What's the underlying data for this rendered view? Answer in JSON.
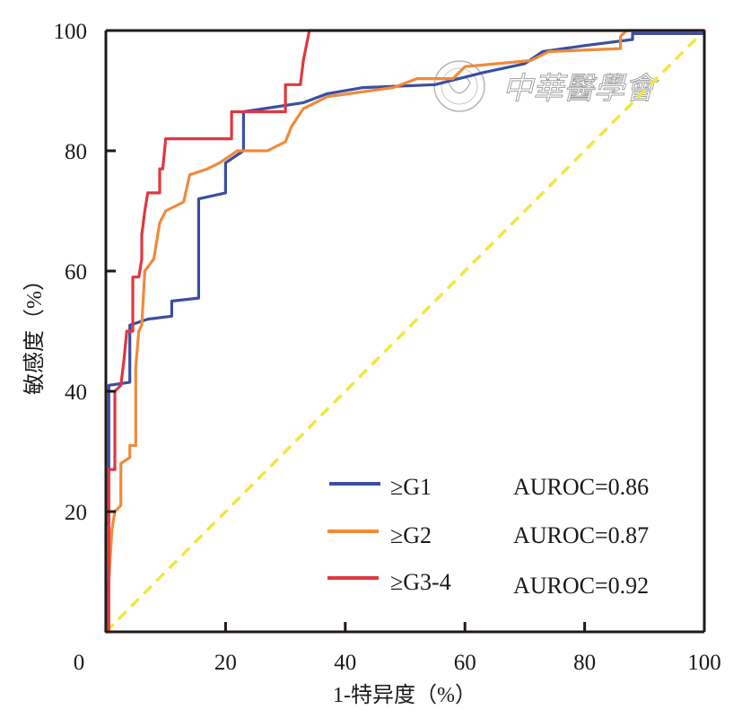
{
  "chart_data": {
    "type": "line",
    "title": "",
    "xlabel": "1-特异度（%）",
    "ylabel": "敏感度（%）",
    "xlim": [
      0,
      100
    ],
    "ylim": [
      0,
      100
    ],
    "x_ticks": [
      0,
      20,
      40,
      60,
      80,
      100
    ],
    "y_ticks": [
      20,
      40,
      60,
      80,
      100
    ],
    "x_tick_labels": [
      "0",
      "20",
      "40",
      "60",
      "80",
      "100"
    ],
    "y_tick_labels": [
      "20",
      "40",
      "60",
      "80",
      "100"
    ],
    "grid": false,
    "legend_position": "bottom-right",
    "reference_line": {
      "name": "chance",
      "color": "#f0e640",
      "style": "dashed",
      "points": [
        [
          0,
          0
        ],
        [
          100,
          100
        ]
      ]
    },
    "series": [
      {
        "name": "≥G1",
        "auroc_label": "AUROC=0.86",
        "color": "#3b4ea3",
        "points": [
          [
            0,
            0
          ],
          [
            0,
            18
          ],
          [
            0.5,
            18
          ],
          [
            0.5,
            41
          ],
          [
            4,
            41.5
          ],
          [
            4,
            51
          ],
          [
            7,
            52
          ],
          [
            11,
            52.5
          ],
          [
            11,
            55
          ],
          [
            15.5,
            55.5
          ],
          [
            15.5,
            72
          ],
          [
            20,
            73
          ],
          [
            20,
            78
          ],
          [
            23,
            80
          ],
          [
            23,
            86.5
          ],
          [
            33,
            88
          ],
          [
            37,
            89.5
          ],
          [
            43,
            90.5
          ],
          [
            55,
            91
          ],
          [
            63,
            93
          ],
          [
            70,
            94.5
          ],
          [
            73,
            96.5
          ],
          [
            80,
            97.5
          ],
          [
            88,
            98.5
          ],
          [
            88,
            99.5
          ],
          [
            100,
            99.5
          ]
        ]
      },
      {
        "name": "≥G2",
        "auroc_label": "AUROC=0.87",
        "color": "#f08a3a",
        "points": [
          [
            0,
            0
          ],
          [
            1,
            17
          ],
          [
            1.5,
            20
          ],
          [
            2.5,
            21
          ],
          [
            2.5,
            28
          ],
          [
            4,
            29
          ],
          [
            4,
            31
          ],
          [
            5,
            31
          ],
          [
            5,
            44
          ],
          [
            5.5,
            50
          ],
          [
            6,
            51
          ],
          [
            6.5,
            60
          ],
          [
            8,
            62
          ],
          [
            8.5,
            65
          ],
          [
            9,
            68
          ],
          [
            10,
            70
          ],
          [
            13,
            71.5
          ],
          [
            14,
            76
          ],
          [
            17,
            77
          ],
          [
            19,
            78
          ],
          [
            22,
            80
          ],
          [
            27,
            80
          ],
          [
            30,
            81.5
          ],
          [
            31,
            84
          ],
          [
            33,
            87
          ],
          [
            35,
            88
          ],
          [
            37,
            89
          ],
          [
            48,
            90.5
          ],
          [
            52,
            92
          ],
          [
            58,
            92
          ],
          [
            60,
            94
          ],
          [
            71,
            95
          ],
          [
            74,
            96.5
          ],
          [
            86,
            97
          ],
          [
            86,
            99
          ],
          [
            87,
            100
          ],
          [
            100,
            100
          ]
        ]
      },
      {
        "name": "≥G3-4",
        "auroc_label": "AUROC=0.92",
        "color": "#e0373f",
        "points": [
          [
            0,
            0
          ],
          [
            0.5,
            0
          ],
          [
            0.5,
            27
          ],
          [
            1.5,
            27
          ],
          [
            1.5,
            40
          ],
          [
            2.5,
            41
          ],
          [
            3,
            45
          ],
          [
            3.5,
            50
          ],
          [
            4.5,
            50
          ],
          [
            4.5,
            59
          ],
          [
            5.5,
            59
          ],
          [
            6,
            62
          ],
          [
            6,
            66
          ],
          [
            6.5,
            70
          ],
          [
            7,
            73
          ],
          [
            9,
            73
          ],
          [
            9,
            77
          ],
          [
            9.5,
            77
          ],
          [
            10,
            82
          ],
          [
            21,
            82
          ],
          [
            21,
            86.5
          ],
          [
            30,
            86.5
          ],
          [
            30,
            91
          ],
          [
            32.5,
            91
          ],
          [
            33,
            95
          ],
          [
            34,
            100
          ],
          [
            100,
            100
          ]
        ]
      }
    ]
  },
  "legend": {
    "items": [
      {
        "label": "≥G1",
        "value": "AUROC=0.86"
      },
      {
        "label": "≥G2",
        "value": "AUROC=0.87"
      },
      {
        "label": "≥G3-4",
        "value": "AUROC=0.92"
      }
    ]
  },
  "watermark": {
    "text": "中華醫學會"
  }
}
